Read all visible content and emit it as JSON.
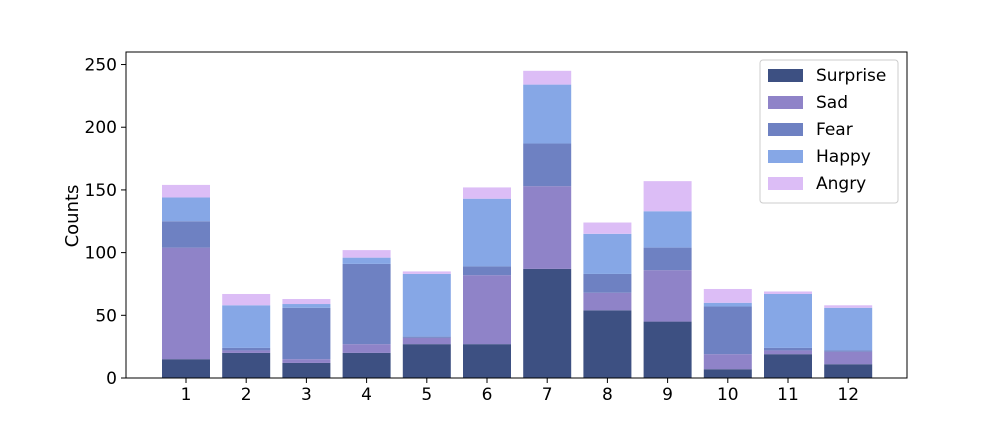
{
  "chart_data": {
    "type": "bar",
    "stacked": true,
    "title": "",
    "xlabel": "",
    "ylabel": "Counts",
    "ylim": [
      0,
      260
    ],
    "yticks": [
      0,
      50,
      100,
      150,
      200,
      250
    ],
    "categories": [
      "1",
      "2",
      "3",
      "4",
      "5",
      "6",
      "7",
      "8",
      "9",
      "10",
      "11",
      "12"
    ],
    "grid": false,
    "legend_position": "top-right",
    "series": [
      {
        "name": "Surprise",
        "color": "#3d5082",
        "values": [
          15,
          20,
          12,
          20,
          27,
          27,
          87,
          54,
          45,
          7,
          19,
          11
        ]
      },
      {
        "name": "Sad",
        "color": "#8f83c8",
        "values": [
          89,
          2,
          3,
          7,
          5,
          55,
          66,
          14,
          41,
          12,
          3,
          10
        ]
      },
      {
        "name": "Fear",
        "color": "#6e81c2",
        "values": [
          21,
          2,
          41,
          64,
          1,
          7,
          34,
          15,
          18,
          38,
          2,
          1
        ]
      },
      {
        "name": "Happy",
        "color": "#86a7e6",
        "values": [
          19,
          34,
          3,
          5,
          50,
          54,
          47,
          32,
          29,
          3,
          43,
          34
        ]
      },
      {
        "name": "Angry",
        "color": "#dcbdf6",
        "values": [
          10,
          9,
          4,
          6,
          2,
          9,
          11,
          9,
          24,
          11,
          2,
          2
        ]
      }
    ]
  }
}
